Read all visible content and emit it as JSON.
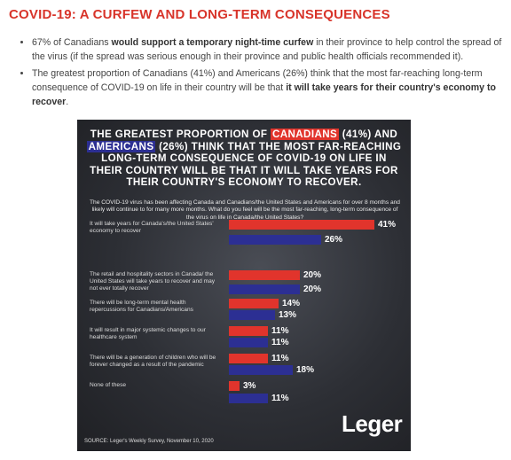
{
  "header": {
    "title": "COVID-19: A CURFEW AND LONG-TERM CONSEQUENCES"
  },
  "bullets": [
    [
      {
        "text": "67% of Canadians "
      },
      {
        "text": "would support a temporary night-time curfew",
        "bold": true
      },
      {
        "text": " in their province to help control the spread of the virus (if the spread was serious enough in their province and public health officials recommended it)."
      }
    ],
    [
      {
        "text": "The greatest proportion of Canadians (41%) and Americans (26%) think that the most far-reaching long-term consequence of COVID-19 on life in their country will be that "
      },
      {
        "text": "it will take years for their country's economy to recover",
        "bold": true
      },
      {
        "text": "."
      }
    ]
  ],
  "chart_data": {
    "type": "bar",
    "headline": [
      {
        "text": "THE GREATEST PROPORTION OF "
      },
      {
        "text": "CANADIANS",
        "highlight": "#e1342c"
      },
      {
        "text": " (41%) AND "
      },
      {
        "text": "AMERICANS",
        "highlight": "#2c2f93"
      },
      {
        "text": " (26%) THINK THAT THE MOST FAR-REACHING LONG-TERM CONSEQUENCE OF COVID-19 ON LIFE IN THEIR COUNTRY WILL BE THAT IT WILL TAKE YEARS FOR THEIR COUNTRY'S ECONOMY TO RECOVER."
      }
    ],
    "question": "The COVID-19 virus has been affecting Canada and Canadians/the United States and Americans for over 8 months and likely will continue to for many more months. What do you feel will be the most far-reaching, long-term consequence of the virus on life in Canada/the United States?",
    "categories": [
      "It will take years for Canada's/the United States' economy to recover",
      "The retail and hospitality sectors in Canada/ the United States will take years to recover and may not ever totally recover",
      "There will be long-term mental health repercussions for Canadians/Americans",
      "It will result in major systemic changes to our healthcare system",
      "There will be a generation of children who will be forever changed as a result of the pandemic",
      "None of these"
    ],
    "series": [
      {
        "color": "#e1342c",
        "values": [
          41,
          20,
          14,
          11,
          11,
          3
        ],
        "value_labels": [
          "41%",
          "20%",
          "14%",
          "11%",
          "11%",
          "3%"
        ]
      },
      {
        "color": "#2c2f93",
        "values": [
          26,
          20,
          13,
          11,
          18,
          11
        ],
        "value_labels": [
          "26%",
          "20%",
          "13%",
          "11%",
          "18%",
          "11%"
        ]
      }
    ],
    "xlim": [
      0,
      50
    ],
    "logo": "Leger",
    "source": "SOURCE: Leger's Weekly Survey, November 10, 2020"
  }
}
